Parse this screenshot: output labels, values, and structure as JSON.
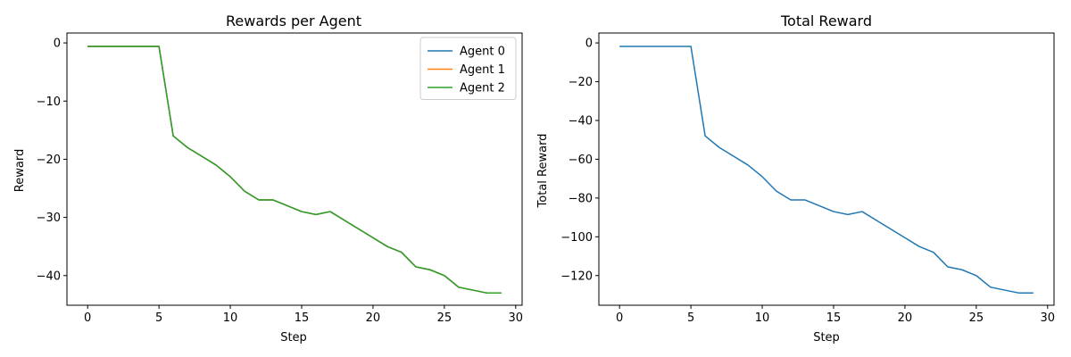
{
  "chart_data": [
    {
      "type": "line",
      "title": "Rewards per Agent",
      "xlabel": "Step",
      "ylabel": "Reward",
      "xlim": [
        -1.45,
        30.45
      ],
      "ylim": [
        -45.1,
        1.7
      ],
      "xticks": [
        0,
        5,
        10,
        15,
        20,
        25,
        30
      ],
      "xtick_labels": [
        "0",
        "5",
        "10",
        "15",
        "20",
        "25",
        "30"
      ],
      "yticks": [
        0,
        -10,
        -20,
        -30,
        -40
      ],
      "ytick_labels": [
        "0",
        "−10",
        "−20",
        "−30",
        "−40"
      ],
      "legend_position": "top-right",
      "x": [
        0,
        1,
        2,
        3,
        4,
        5,
        6,
        7,
        8,
        9,
        10,
        11,
        12,
        13,
        14,
        15,
        16,
        17,
        18,
        19,
        20,
        21,
        22,
        23,
        24,
        25,
        26,
        27,
        28,
        29
      ],
      "series": [
        {
          "name": "Agent 0",
          "color": "#1f77b4",
          "values": [
            -0.6,
            -0.6,
            -0.6,
            -0.6,
            -0.6,
            -0.6,
            -16.0,
            -18.0,
            -19.5,
            -21.0,
            -23.0,
            -25.5,
            -27.0,
            -27.0,
            -28.0,
            -29.0,
            -29.5,
            -29.0,
            -30.5,
            -32.0,
            -33.5,
            -35.0,
            -36.0,
            -38.5,
            -39.0,
            -40.0,
            -42.0,
            -42.5,
            -43.0,
            -43.0
          ]
        },
        {
          "name": "Agent 1",
          "color": "#ff7f0e",
          "values": [
            -0.6,
            -0.6,
            -0.6,
            -0.6,
            -0.6,
            -0.6,
            -16.0,
            -18.0,
            -19.5,
            -21.0,
            -23.0,
            -25.5,
            -27.0,
            -27.0,
            -28.0,
            -29.0,
            -29.5,
            -29.0,
            -30.5,
            -32.0,
            -33.5,
            -35.0,
            -36.0,
            -38.5,
            -39.0,
            -40.0,
            -42.0,
            -42.5,
            -43.0,
            -43.0
          ]
        },
        {
          "name": "Agent 2",
          "color": "#2ca02c",
          "values": [
            -0.6,
            -0.6,
            -0.6,
            -0.6,
            -0.6,
            -0.6,
            -16.0,
            -18.0,
            -19.5,
            -21.0,
            -23.0,
            -25.5,
            -27.0,
            -27.0,
            -28.0,
            -29.0,
            -29.5,
            -29.0,
            -30.5,
            -32.0,
            -33.5,
            -35.0,
            -36.0,
            -38.5,
            -39.0,
            -40.0,
            -42.0,
            -42.5,
            -43.0,
            -43.0
          ]
        }
      ]
    },
    {
      "type": "line",
      "title": "Total Reward",
      "xlabel": "Step",
      "ylabel": "Total Reward",
      "xlim": [
        -1.45,
        30.45
      ],
      "ylim": [
        -135.3,
        5.1
      ],
      "xticks": [
        0,
        5,
        10,
        15,
        20,
        25,
        30
      ],
      "xtick_labels": [
        "0",
        "5",
        "10",
        "15",
        "20",
        "25",
        "30"
      ],
      "yticks": [
        0,
        -20,
        -40,
        -60,
        -80,
        -100,
        -120
      ],
      "ytick_labels": [
        "0",
        "−20",
        "−40",
        "−60",
        "−80",
        "−100",
        "−120"
      ],
      "x": [
        0,
        1,
        2,
        3,
        4,
        5,
        6,
        7,
        8,
        9,
        10,
        11,
        12,
        13,
        14,
        15,
        16,
        17,
        18,
        19,
        20,
        21,
        22,
        23,
        24,
        25,
        26,
        27,
        28,
        29
      ],
      "series": [
        {
          "color": "#1f77b4",
          "values": [
            -1.8,
            -1.8,
            -1.8,
            -1.8,
            -1.8,
            -1.8,
            -48.0,
            -54.0,
            -58.5,
            -63.0,
            -69.0,
            -76.5,
            -81.0,
            -81.0,
            -84.0,
            -87.0,
            -88.5,
            -87.0,
            -91.5,
            -96.0,
            -100.5,
            -105.0,
            -108.0,
            -115.5,
            -117.0,
            -120.0,
            -126.0,
            -127.5,
            -129.0,
            -129.0
          ]
        }
      ]
    }
  ]
}
